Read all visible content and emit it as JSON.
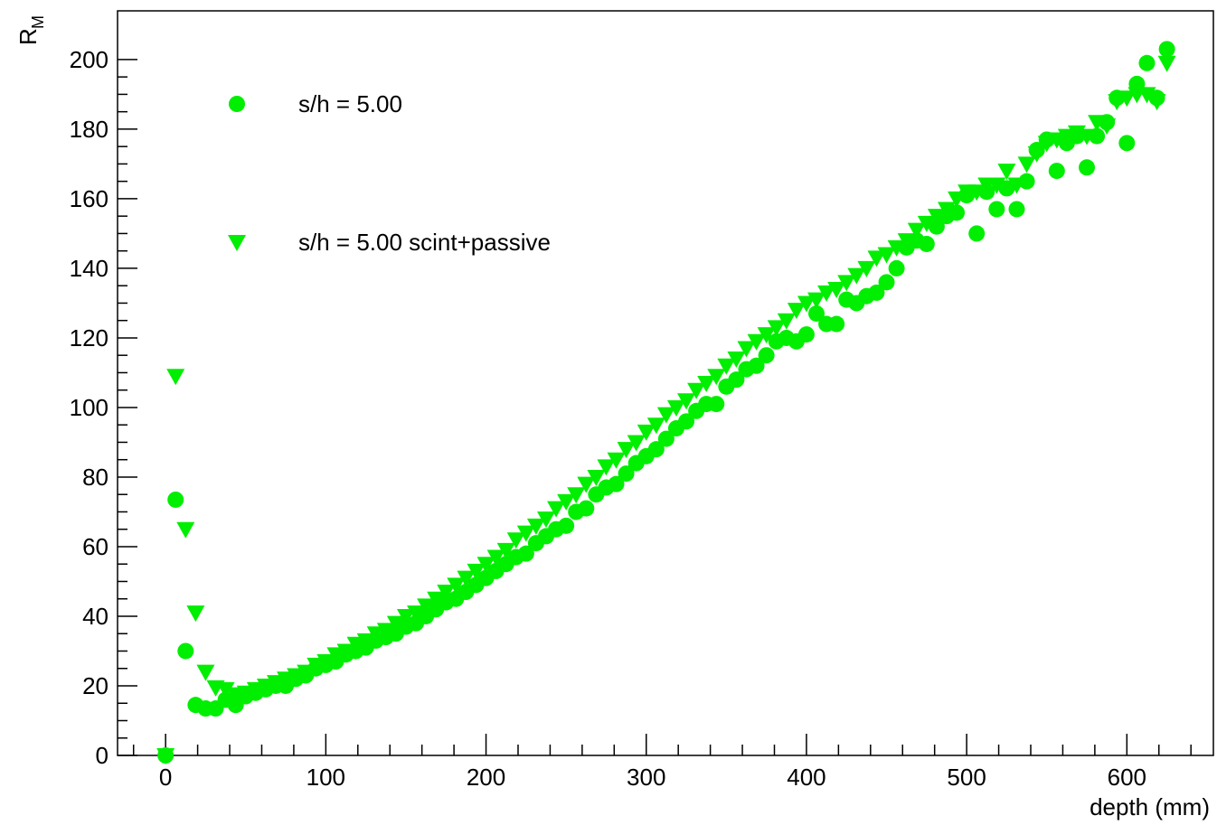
{
  "chart_data": {
    "type": "scatter",
    "xlabel": "depth (mm)",
    "ylabel": "R",
    "ylabel_sub": "M",
    "x": [
      0,
      6.25,
      12.5,
      18.75,
      25,
      31.25,
      37.5,
      43.75,
      50,
      56.25,
      62.5,
      68.75,
      75,
      81.25,
      87.5,
      93.75,
      100,
      106.25,
      112.5,
      118.75,
      125,
      131.25,
      137.5,
      143.75,
      150,
      156.25,
      162.5,
      168.75,
      175,
      181.25,
      187.5,
      193.75,
      200,
      206.25,
      212.5,
      218.75,
      225,
      231.25,
      237.5,
      243.75,
      250,
      256.25,
      262.5,
      268.75,
      275,
      281.25,
      287.5,
      293.75,
      300,
      306.25,
      312.5,
      318.75,
      325,
      331.25,
      337.5,
      343.75,
      350,
      356.25,
      362.5,
      368.75,
      375,
      381.25,
      387.5,
      393.75,
      400,
      406.25,
      412.5,
      418.75,
      425,
      431.25,
      437.5,
      443.75,
      450,
      456.25,
      462.5,
      468.75,
      475,
      481.25,
      487.5,
      493.75,
      500,
      506.25,
      512.5,
      518.75,
      525,
      531.25,
      537.5,
      543.75,
      550,
      556.25,
      562.5,
      568.75,
      575,
      581.25,
      587.5,
      593.75,
      600,
      606.25,
      612.5,
      618.75,
      625
    ],
    "series": [
      {
        "name": "s/h = 5.00",
        "marker": "circle",
        "color": "#00ee00",
        "values": [
          0,
          73.5,
          30,
          14.5,
          13.5,
          13.5,
          16,
          14.5,
          17,
          18,
          19,
          20,
          20,
          22,
          23,
          25,
          26,
          27,
          29,
          30,
          31,
          33,
          34,
          35,
          37,
          38,
          40,
          42,
          44,
          45,
          47,
          49,
          51,
          53,
          55,
          57,
          58,
          61,
          63,
          65,
          66,
          70,
          71,
          75,
          77,
          78,
          81,
          84,
          86,
          88,
          91,
          94,
          96,
          99,
          101,
          101,
          106,
          108,
          111,
          112,
          115,
          119,
          120,
          119,
          121,
          127,
          124,
          124,
          131,
          130,
          132,
          133,
          136,
          140,
          146,
          148,
          147,
          152,
          155,
          156,
          161,
          150,
          162,
          157,
          163,
          157,
          165,
          174,
          177,
          168,
          176,
          178,
          169,
          178,
          182,
          189,
          176,
          193,
          199,
          189,
          203
        ]
      },
      {
        "name": "s/h = 5.00 scint+passive",
        "marker": "triangle-down",
        "color": "#00ee00",
        "values": [
          0,
          109,
          65,
          41,
          24,
          19.5,
          19,
          17.5,
          18,
          19,
          20,
          21,
          22,
          23,
          24,
          26,
          27,
          29,
          30,
          32,
          33,
          35,
          36,
          38,
          40,
          41,
          43,
          45,
          47,
          49,
          51,
          53,
          55,
          57,
          59,
          62,
          64,
          66,
          68,
          71,
          73,
          75,
          78,
          80,
          83,
          85,
          88,
          90,
          93,
          95,
          98,
          100,
          102,
          105,
          107,
          109,
          112,
          114,
          117,
          119,
          121,
          123,
          125,
          128,
          130,
          131,
          133,
          134,
          136,
          138,
          140,
          143,
          144,
          146,
          148,
          151,
          153,
          155,
          157,
          160,
          162,
          162,
          164,
          164,
          168,
          164,
          170,
          173,
          176,
          177,
          178,
          179,
          178,
          182,
          181,
          188,
          189,
          190,
          190,
          188,
          199
        ]
      }
    ],
    "xlim": [
      -30,
      654
    ],
    "ylim": [
      0,
      214
    ],
    "xticks": [
      0,
      100,
      200,
      300,
      400,
      500,
      600
    ],
    "yticks": [
      0,
      20,
      40,
      60,
      80,
      100,
      120,
      140,
      160,
      180,
      200
    ]
  }
}
